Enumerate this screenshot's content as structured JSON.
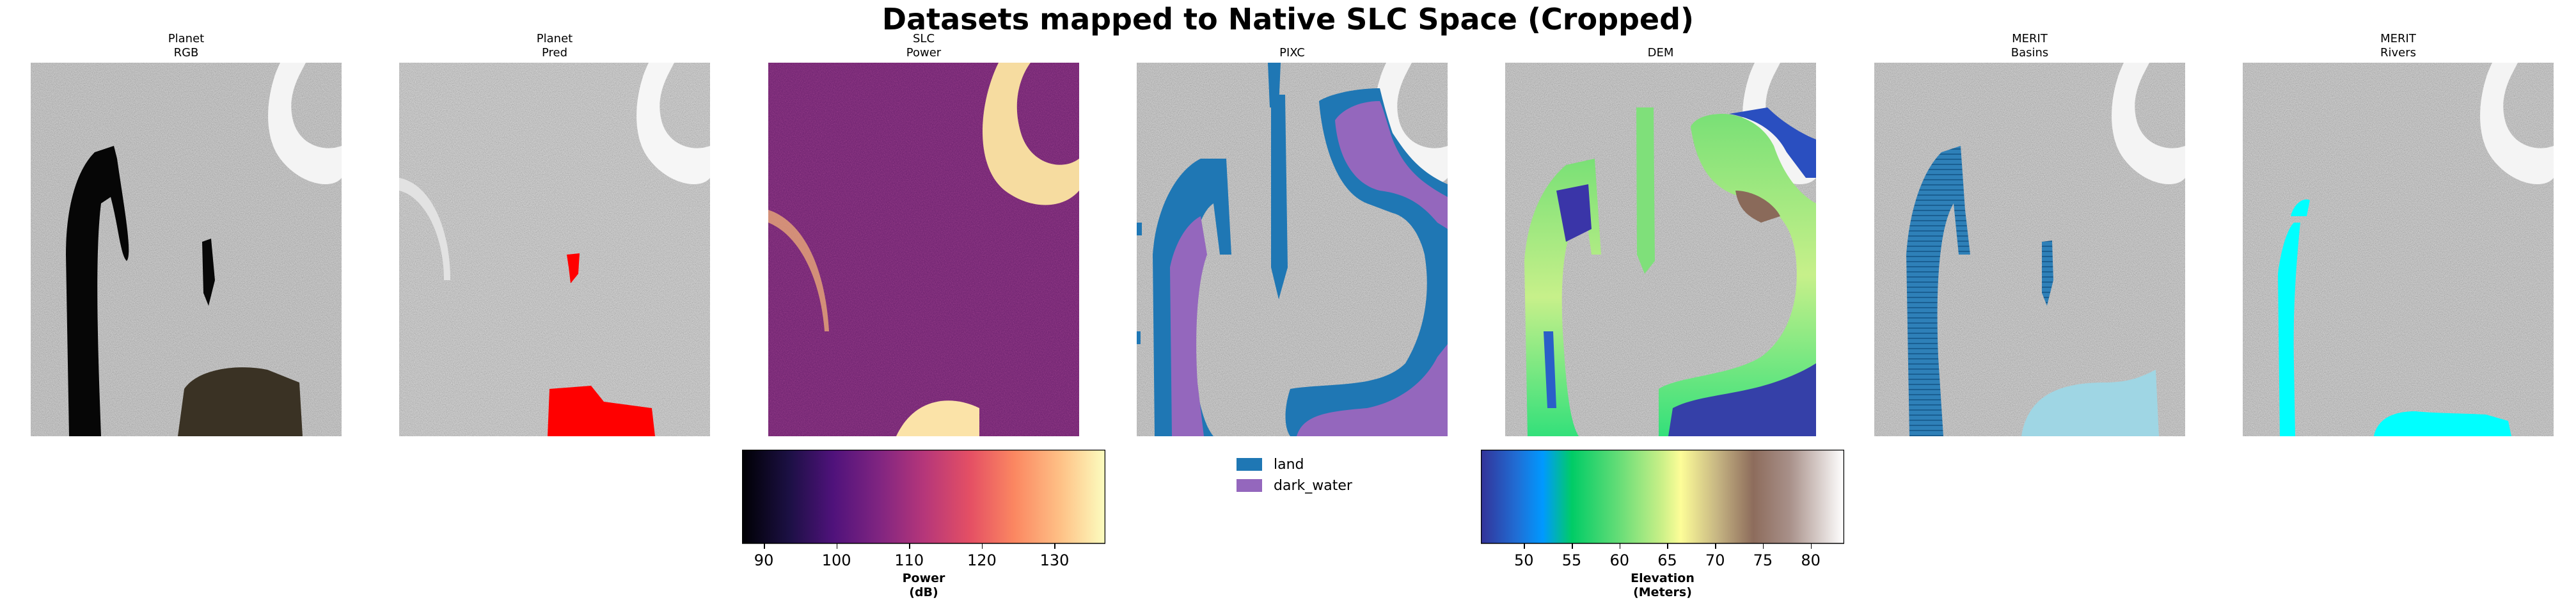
{
  "chart_data": {
    "type": "image-grid",
    "title": "Datasets mapped to Native SLC Space (Cropped)",
    "panels": [
      {
        "id": "planet-rgb",
        "title": [
          "Planet",
          "RGB"
        ]
      },
      {
        "id": "planet-pred",
        "title": [
          "Planet",
          "Pred"
        ]
      },
      {
        "id": "slc-power",
        "title": [
          "SLC",
          "Power"
        ]
      },
      {
        "id": "pixc",
        "title": [
          "PIXC"
        ]
      },
      {
        "id": "dem",
        "title": [
          "DEM"
        ]
      },
      {
        "id": "merit-basins",
        "title": [
          "MERIT",
          "Basins"
        ]
      },
      {
        "id": "merit-rivers",
        "title": [
          "MERIT",
          "Rivers"
        ]
      }
    ],
    "colorbars": [
      {
        "id": "power",
        "colormap": "magma",
        "range": [
          87,
          137
        ],
        "ticks": [
          90,
          100,
          110,
          120,
          130
        ],
        "tick_labels": [
          "90",
          "100",
          "110",
          "120",
          "130"
        ],
        "label": [
          "Power",
          "(dB)"
        ]
      },
      {
        "id": "elevation",
        "colormap": "terrain",
        "range": [
          45.5,
          83.5
        ],
        "ticks": [
          50,
          55,
          60,
          65,
          70,
          75,
          80
        ],
        "tick_labels": [
          "50",
          "55",
          "60",
          "65",
          "70",
          "75",
          "80"
        ],
        "label": [
          "Elevation",
          "(Meters)"
        ]
      }
    ],
    "legend": {
      "placement": "below PIXC panel",
      "entries": [
        {
          "label": "land",
          "color": "#1f77b4"
        },
        {
          "label": "dark_water",
          "color": "#9467bd"
        }
      ]
    }
  }
}
